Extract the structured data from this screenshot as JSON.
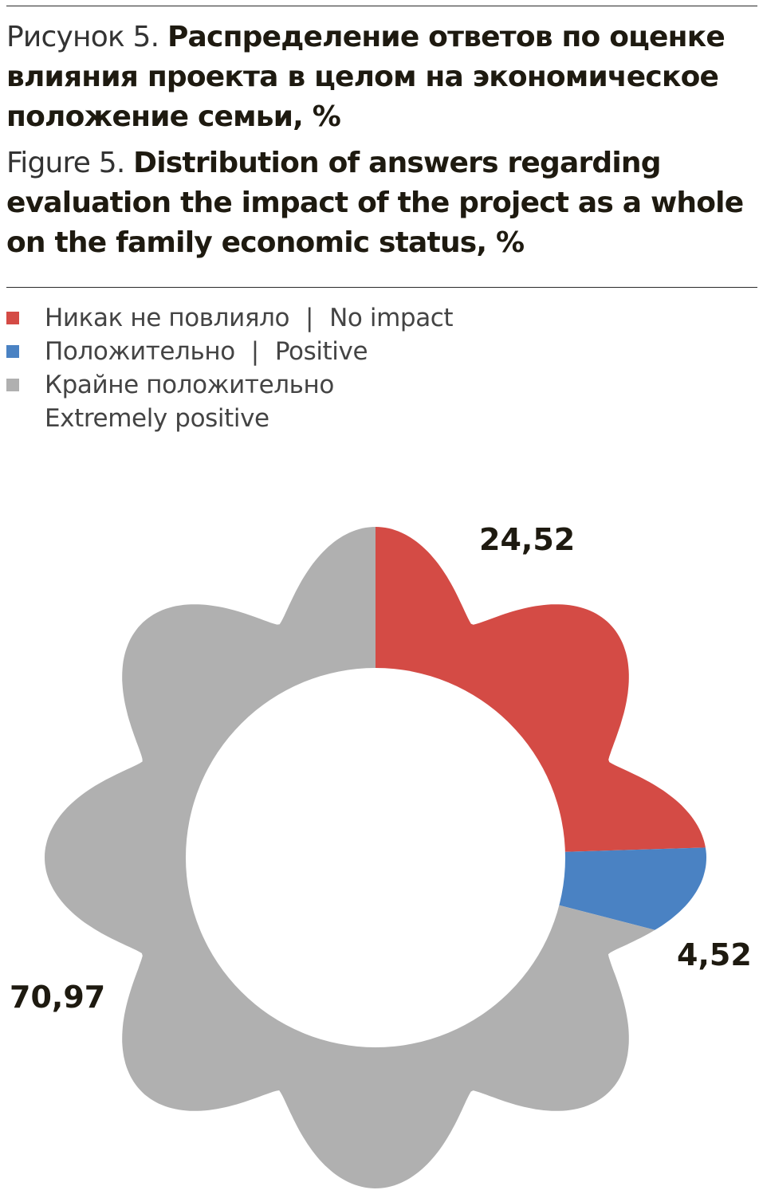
{
  "title_ru": {
    "prefix": "Рисунок 5.",
    "text": "Распределение ответов по оценке влияния проекта в целом на экономическое положение семьи, %"
  },
  "title_en": {
    "prefix": "Figure 5.",
    "text": "Distribution of answers regarding evaluation the impact of the project as a whole on the family economic status, %"
  },
  "chart_data": {
    "type": "pie",
    "variant": "donut (flower-shaped)",
    "unit": "%",
    "legend_position": "top-left",
    "slices": [
      {
        "name_ru": "Никак не повлияло",
        "name_en": "No impact",
        "value": 24.52,
        "label": "24,52",
        "color": "#d44b45"
      },
      {
        "name_ru": "Положительно",
        "name_en": "Positive",
        "value": 4.52,
        "label": "4,52",
        "color": "#4a82c3"
      },
      {
        "name_ru": "Крайне положительно",
        "name_en": "Extremely positive",
        "value": 70.97,
        "label": "70,97",
        "color": "#b0b0b0"
      }
    ],
    "legend_separator": "|"
  }
}
